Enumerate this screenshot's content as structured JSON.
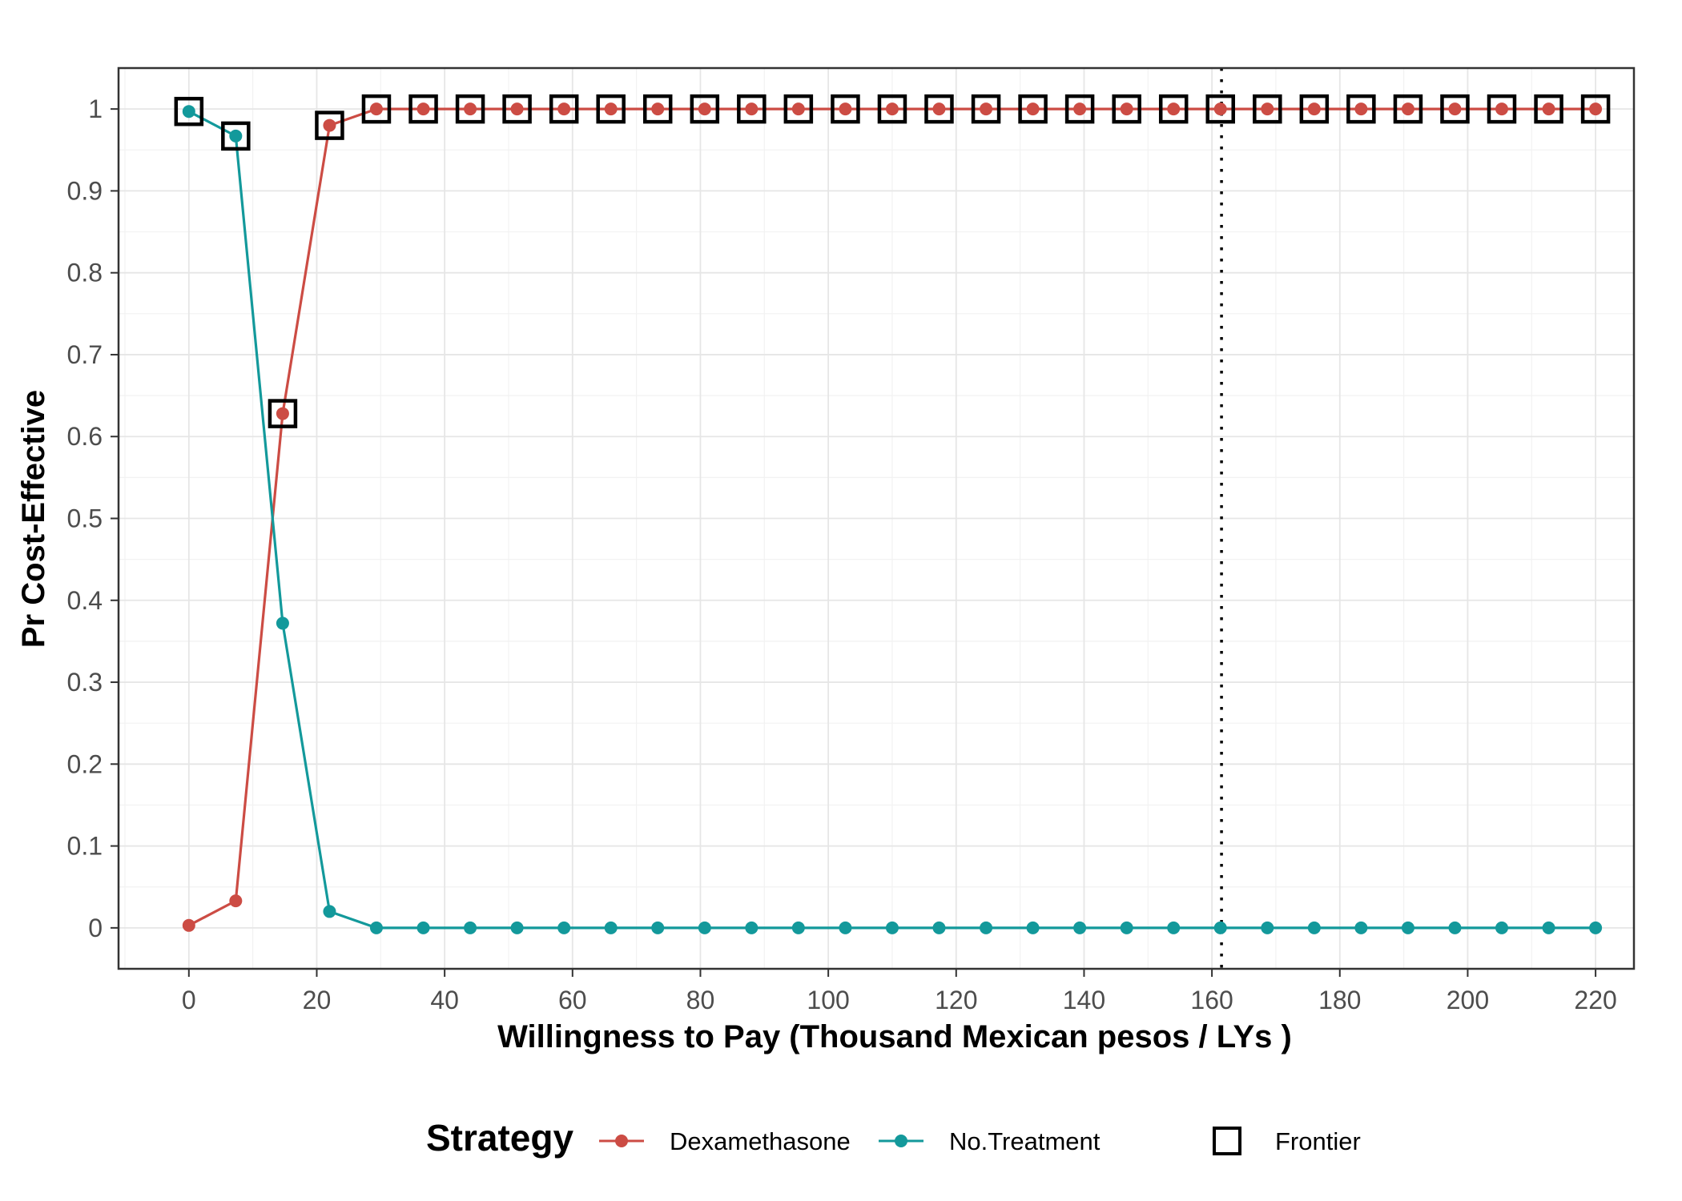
{
  "chart_data": {
    "type": "line",
    "xlabel": "Willingness to Pay (Thousand Mexican pesos / LYs )",
    "ylabel": "Pr Cost-Effective",
    "xlim": [
      -11,
      226
    ],
    "ylim": [
      -0.05,
      1.05
    ],
    "x_ticks": [
      0,
      20,
      40,
      60,
      80,
      100,
      120,
      140,
      160,
      180,
      200,
      220
    ],
    "y_ticks": [
      0,
      0.1,
      0.2,
      0.3,
      0.4,
      0.5,
      0.6,
      0.7,
      0.8,
      0.9,
      1
    ],
    "y_tick_labels": [
      "0",
      "0.1",
      "0.2",
      "0.3",
      "0.4",
      "0.5",
      "0.6",
      "0.7",
      "0.8",
      "0.9",
      "1"
    ],
    "grid": true,
    "x": [
      0,
      7.33,
      14.67,
      22,
      29.33,
      36.67,
      44,
      51.33,
      58.67,
      66,
      73.33,
      80.67,
      88,
      95.33,
      102.67,
      110,
      117.33,
      124.67,
      132,
      139.33,
      146.67,
      154,
      161.33,
      168.67,
      176,
      183.33,
      190.67,
      198,
      205.33,
      212.67,
      220
    ],
    "series": [
      {
        "name": "Dexamethasone",
        "color": "#cc4c44",
        "values": [
          0.003,
          0.033,
          0.628,
          0.98,
          1,
          1,
          1,
          1,
          1,
          1,
          1,
          1,
          1,
          1,
          1,
          1,
          1,
          1,
          1,
          1,
          1,
          1,
          1,
          1,
          1,
          1,
          1,
          1,
          1,
          1,
          1
        ]
      },
      {
        "name": "No.Treatment",
        "color": "#13999b",
        "values": [
          0.997,
          0.967,
          0.372,
          0.02,
          0,
          0,
          0,
          0,
          0,
          0,
          0,
          0,
          0,
          0,
          0,
          0,
          0,
          0,
          0,
          0,
          0,
          0,
          0,
          0,
          0,
          0,
          0,
          0,
          0,
          0,
          0
        ]
      }
    ],
    "frontier": {
      "name": "Frontier",
      "values": [
        0.997,
        0.967,
        0.628,
        0.98,
        1,
        1,
        1,
        1,
        1,
        1,
        1,
        1,
        1,
        1,
        1,
        1,
        1,
        1,
        1,
        1,
        1,
        1,
        1,
        1,
        1,
        1,
        1,
        1,
        1,
        1,
        1
      ]
    },
    "vline": {
      "x": 161.5,
      "style": "dotted"
    },
    "legend": {
      "title": "Strategy",
      "placement": "bottom",
      "items": [
        "Dexamethasone",
        "No.Treatment",
        "Frontier"
      ]
    }
  }
}
